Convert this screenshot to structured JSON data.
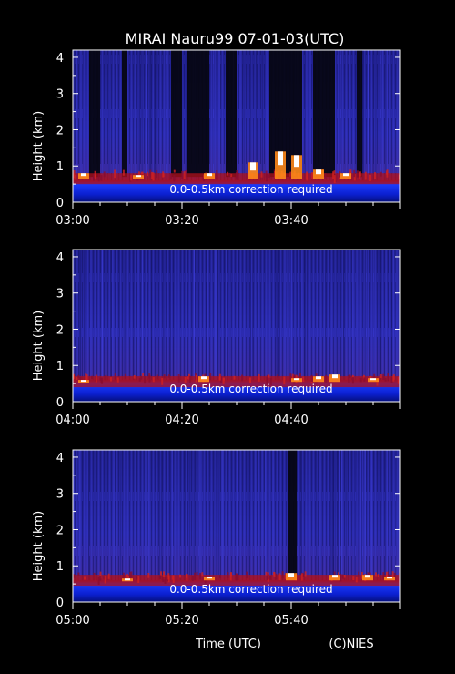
{
  "title": "MIRAI Nauru99 07-01-03(UTC)",
  "footer": {
    "xlabel": "Time (UTC)",
    "credit": "(C)NIES"
  },
  "colors": {
    "background": "#000000",
    "field_dark": "#0a0a3a",
    "field_blue": "#2a2ab8",
    "surface_band": "#1a4cff",
    "aerosol_red": "#b0101a",
    "cloud_orange": "#ff8a1a",
    "cloud_white": "#ffffff",
    "axis": "#ffffff"
  },
  "chart_data": [
    {
      "type": "heatmap",
      "ylabel": "Height (km)",
      "ylim": [
        0,
        4.2
      ],
      "yticks": [
        "0",
        "1",
        "2",
        "3",
        "4"
      ],
      "xticks": [
        "03:00",
        "03:20",
        "03:40"
      ],
      "xlim_minutes": [
        0,
        60
      ],
      "annotation": "0.0-0.5km correction required",
      "cloud_base_km": 0.65,
      "cloud_tops_km": [
        0.8,
        0.75,
        0.8,
        1.1,
        1.4,
        1.3,
        0.9,
        0.8
      ],
      "cloud_top_minutes": [
        2,
        12,
        25,
        33,
        38,
        41,
        45,
        50
      ],
      "dark_columns_minutes": [
        [
          3,
          5
        ],
        [
          9,
          10
        ],
        [
          18,
          20
        ],
        [
          21,
          25
        ],
        [
          28,
          30
        ],
        [
          36,
          42
        ],
        [
          44,
          48
        ],
        [
          52,
          53
        ]
      ]
    },
    {
      "type": "heatmap",
      "ylabel": "Height (km)",
      "ylim": [
        0,
        4.2
      ],
      "yticks": [
        "0",
        "1",
        "2",
        "3",
        "4"
      ],
      "xticks": [
        "04:00",
        "04:20",
        "04:40"
      ],
      "xlim_minutes": [
        0,
        60
      ],
      "annotation": "0.0-0.5km correction required",
      "cloud_base_km": 0.55,
      "cloud_tops_km": [
        0.6,
        0.7,
        0.65,
        0.7,
        0.75,
        0.65
      ],
      "cloud_top_minutes": [
        2,
        24,
        41,
        45,
        48,
        55
      ],
      "dark_columns_minutes": []
    },
    {
      "type": "heatmap",
      "ylabel": "Height (km)",
      "ylim": [
        0,
        4.2
      ],
      "yticks": [
        "0",
        "1",
        "2",
        "3",
        "4"
      ],
      "xticks": [
        "05:00",
        "05:20",
        "05:40"
      ],
      "xlim_minutes": [
        0,
        60
      ],
      "annotation": "0.0-0.5km correction required",
      "cloud_base_km": 0.6,
      "cloud_tops_km": [
        0.65,
        0.7,
        0.8,
        0.75,
        0.75,
        0.7
      ],
      "cloud_top_minutes": [
        10,
        25,
        40,
        48,
        54,
        58
      ],
      "dark_columns_minutes": [
        [
          39.5,
          41
        ]
      ]
    }
  ]
}
